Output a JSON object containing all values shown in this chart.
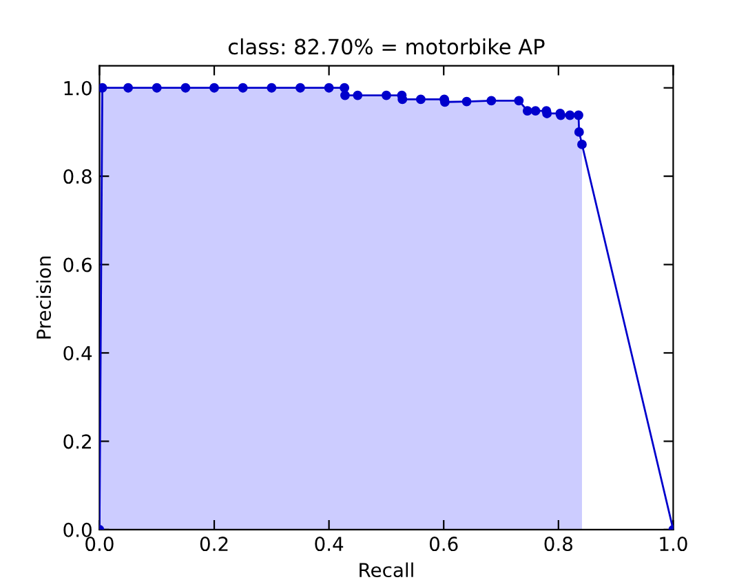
{
  "chart_data": {
    "type": "line",
    "title": "class: 82.70% = motorbike AP",
    "xlabel": "Recall",
    "ylabel": "Precision",
    "xlim": [
      0,
      1
    ],
    "ylim": [
      0,
      1.05
    ],
    "xticks": [
      {
        "value": 0,
        "label": "0.0"
      },
      0.2,
      0.4,
      0.6,
      0.8,
      {
        "value": 1,
        "label": "1.0"
      }
    ],
    "yticks": [
      {
        "value": 0,
        "label": "0.0"
      },
      0.2,
      0.4,
      0.6,
      0.8,
      {
        "value": 1,
        "label": "1.0"
      }
    ],
    "grid": false,
    "legend": false,
    "series": [
      {
        "type": "area",
        "color": "#ccccff",
        "x": [
          0,
          0.005,
          0.1,
          0.2,
          0.3,
          0.427,
          0.428,
          0.527,
          0.528,
          0.601,
          0.602,
          0.683,
          0.731,
          0.746,
          0.779,
          0.78,
          0.803,
          0.804,
          0.835,
          0.836,
          0.841
        ],
        "values": [
          1.0,
          1.0,
          1.0,
          1.0,
          1.0,
          1.0,
          0.983,
          0.983,
          0.974,
          0.974,
          0.968,
          0.971,
          0.971,
          0.948,
          0.948,
          0.942,
          0.942,
          0.938,
          0.938,
          0.872,
          0.872
        ]
      },
      {
        "color": "#0000cc",
        "marker": "circle",
        "x": [
          0,
          0.005,
          0.05,
          0.1,
          0.15,
          0.2,
          0.25,
          0.3,
          0.35,
          0.4,
          0.427,
          0.428,
          0.45,
          0.5,
          0.527,
          0.528,
          0.56,
          0.601,
          0.602,
          0.64,
          0.683,
          0.731,
          0.746,
          0.76,
          0.779,
          0.78,
          0.803,
          0.804,
          0.82,
          0.835,
          0.836,
          0.841,
          1.0
        ],
        "values": [
          0.0,
          1.0,
          1.0,
          1.0,
          1.0,
          1.0,
          1.0,
          1.0,
          1.0,
          1.0,
          1.0,
          0.983,
          0.983,
          0.983,
          0.983,
          0.974,
          0.974,
          0.974,
          0.968,
          0.969,
          0.971,
          0.971,
          0.948,
          0.948,
          0.948,
          0.942,
          0.942,
          0.938,
          0.938,
          0.938,
          0.9,
          0.872,
          0.0
        ]
      }
    ]
  }
}
